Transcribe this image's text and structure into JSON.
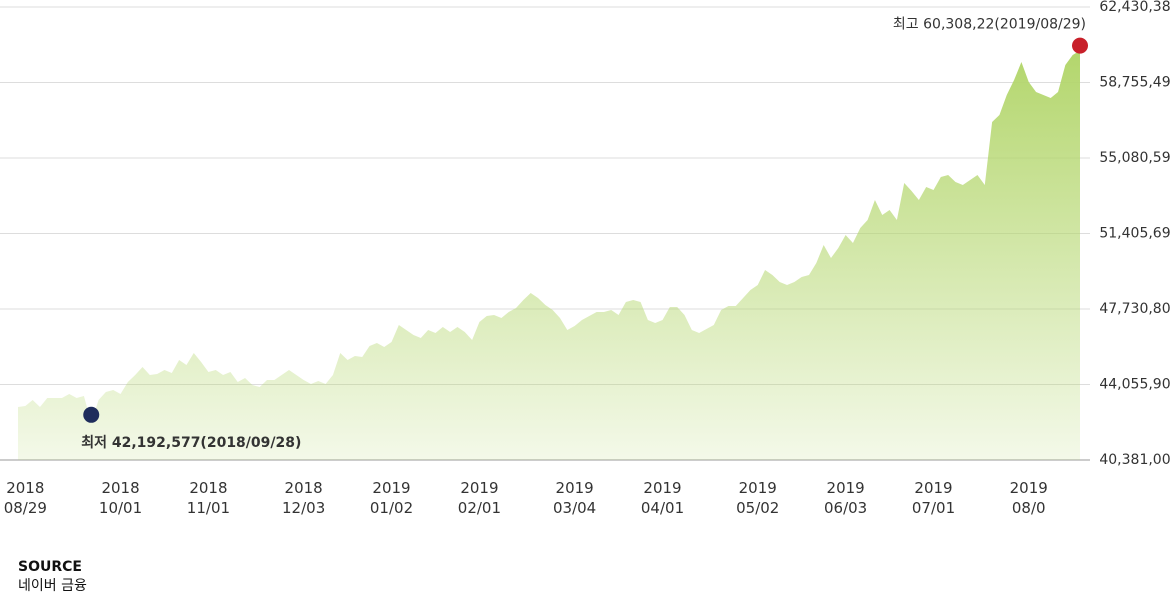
{
  "chart_data": {
    "type": "area",
    "values": [
      42961,
      43009,
      43301,
      42961,
      43399,
      43399,
      43399,
      43593,
      43399,
      43496,
      42192.577,
      43301,
      43691,
      43788,
      43593,
      44177,
      44518,
      44907,
      44518,
      44567,
      44761,
      44615,
      45248,
      45005,
      45589,
      45151,
      44664,
      44761,
      44518,
      44664,
      44177,
      44372,
      44031,
      43934,
      44275,
      44275,
      44518,
      44761,
      44518,
      44275,
      44080,
      44226,
      44080,
      44518,
      45589,
      45248,
      45443,
      45394,
      45929,
      46075,
      45881,
      46124,
      46951,
      46708,
      46465,
      46319,
      46708,
      46562,
      46854,
      46611,
      46854,
      46611,
      46221,
      47097,
      47389,
      47438,
      47292,
      47584,
      47779,
      48168,
      48509,
      48266,
      47925,
      47682,
      47292,
      46708,
      46903,
      47195,
      47389,
      47584,
      47584,
      47682,
      47438,
      48071,
      48168,
      48071,
      47195,
      47049,
      47195,
      47828,
      47828,
      47438,
      46708,
      46562,
      46757,
      46951,
      47682,
      47876,
      47876,
      48266,
      48655,
      48898,
      49628,
      49385,
      49044,
      48898,
      49044,
      49288,
      49385,
      49969,
      50845,
      50212,
      50699,
      51332,
      50942,
      51672,
      52062,
      53035,
      52305,
      52549,
      52062,
      53862,
      53473,
      53035,
      53668,
      53522,
      54155,
      54252,
      53911,
      53765,
      54009,
      54252,
      53765,
      56831,
      57172,
      58146,
      58876,
      59752,
      58778,
      58292,
      58146,
      58000,
      58292,
      59606,
      60092,
      60308.22
    ],
    "color": "#b3d66c",
    "ylim": [
      40381,
      62430.38
    ],
    "yticks": [
      {
        "value": 62430.38,
        "label": "62,430,38"
      },
      {
        "value": 58755.49,
        "label": "58,755,49"
      },
      {
        "value": 55080.59,
        "label": "55,080,59"
      },
      {
        "value": 51405.69,
        "label": "51,405,69"
      },
      {
        "value": 47730.8,
        "label": "47,730,80"
      },
      {
        "value": 44055.9,
        "label": "44,055,90"
      },
      {
        "value": 40381,
        "label": "40,381,00"
      }
    ],
    "xlim": [
      0,
      145
    ],
    "xticks": [
      {
        "value": 1,
        "label": "2018\n08/29"
      },
      {
        "value": 14,
        "label": "2018\n10/01"
      },
      {
        "value": 26,
        "label": "2018\n11/01"
      },
      {
        "value": 39,
        "label": "2018\n12/03"
      },
      {
        "value": 51,
        "label": "2019\n01/02"
      },
      {
        "value": 63,
        "label": "2019\n02/01"
      },
      {
        "value": 76,
        "label": "2019\n03/04"
      },
      {
        "value": 88,
        "label": "2019\n04/01"
      },
      {
        "value": 101,
        "label": "2019\n05/02"
      },
      {
        "value": 113,
        "label": "2019\n06/03"
      },
      {
        "value": 125,
        "label": "2019\n07/01"
      },
      {
        "value": 138,
        "label": "2019\n08/0"
      }
    ],
    "grid": true,
    "min_label": "최저 42,192,577(2018/09/28)",
    "min_color": "#1f2d5c",
    "max_label": "최고 60,308,22(2019/08/29)",
    "max_color": "#c8202a",
    "source_title": "SOURCE",
    "source": "네이버 금융"
  }
}
